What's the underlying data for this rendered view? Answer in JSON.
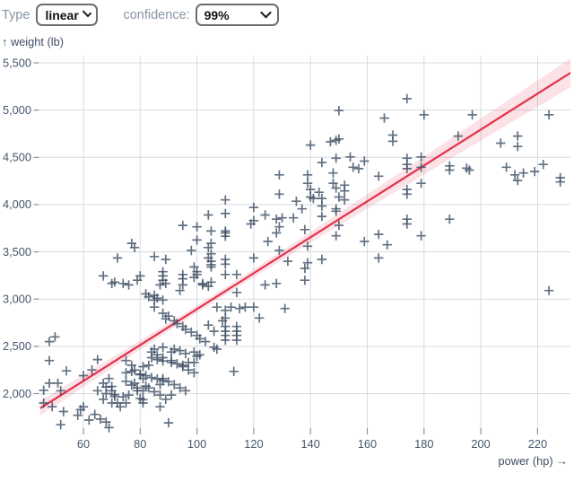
{
  "controls": {
    "type_label": "Type",
    "type_value": "linear",
    "confidence_label": "confidence:",
    "confidence_value": "99%",
    "confidence_options_visible_selected": "99%"
  },
  "colors": {
    "accent_red": "#e4314b",
    "band_pink": "rgba(228,49,75,0.14)",
    "point_slate": "#3c4d63",
    "grid": "#d6dbe1",
    "tick_color": "#8894a2",
    "tick_text": "#46566b",
    "axis_title": "#3e4e63"
  },
  "chart_data": {
    "type": "scatter",
    "marker": "plus",
    "title": "",
    "xlabel": "power (hp) →",
    "ylabel": "↑ weight (lb)",
    "x_ticks": [
      60,
      80,
      100,
      120,
      140,
      160,
      180,
      200,
      220
    ],
    "y_ticks": [
      2000,
      2500,
      3000,
      3500,
      4000,
      4500,
      5000,
      5500
    ],
    "x_domain": [
      44.8,
      231.7
    ],
    "y_domain": [
      1610,
      5575
    ],
    "grid": true,
    "regression": {
      "model": "linear",
      "slope_lb_per_hp": 19.0,
      "intercept_lb": 994,
      "confidence": "99%",
      "band_mean_hp": 104,
      "band_halfwidth_lb_at_mean": 40,
      "band_growth": 1.33
    },
    "points": [
      [
        46,
        1900
      ],
      [
        46,
        2035
      ],
      [
        48,
        2350
      ],
      [
        48,
        2550
      ],
      [
        48,
        2110
      ],
      [
        49,
        1860
      ],
      [
        50,
        2600
      ],
      [
        51,
        2110
      ],
      [
        52,
        2030
      ],
      [
        52,
        1670
      ],
      [
        53,
        1810
      ],
      [
        54,
        2240
      ],
      [
        58,
        1770
      ],
      [
        59,
        1830
      ],
      [
        60,
        1860
      ],
      [
        60,
        2190
      ],
      [
        62,
        1720
      ],
      [
        63,
        2250
      ],
      [
        64,
        1780
      ],
      [
        65,
        2360
      ],
      [
        65,
        2030
      ],
      [
        66,
        1730
      ],
      [
        67,
        2110
      ],
      [
        67,
        1940
      ],
      [
        68,
        2000
      ],
      [
        68,
        2070
      ],
      [
        68,
        1700
      ],
      [
        69,
        2160
      ],
      [
        69,
        1640
      ],
      [
        70,
        2030
      ],
      [
        70,
        1900
      ],
      [
        70,
        2075
      ],
      [
        71,
        1970
      ],
      [
        71,
        1990
      ],
      [
        72,
        1900
      ],
      [
        73,
        1860
      ],
      [
        74,
        1965
      ],
      [
        75,
        1900
      ],
      [
        75,
        2350
      ],
      [
        75,
        2130
      ],
      [
        75,
        2220
      ],
      [
        76,
        1985
      ],
      [
        77,
        2300
      ],
      [
        77,
        2090
      ],
      [
        77,
        2235
      ],
      [
        78,
        2250
      ],
      [
        78,
        2110
      ],
      [
        79,
        2060
      ],
      [
        79,
        2030
      ],
      [
        80,
        2200
      ],
      [
        80,
        2205
      ],
      [
        80,
        1950
      ],
      [
        81,
        2160
      ],
      [
        81,
        2030
      ],
      [
        81,
        2285
      ],
      [
        81,
        1935
      ],
      [
        81,
        1900
      ],
      [
        82,
        2190
      ],
      [
        82,
        2080
      ],
      [
        83,
        2060
      ],
      [
        83,
        2300
      ],
      [
        84,
        2440
      ],
      [
        84,
        2380
      ],
      [
        84,
        2170
      ],
      [
        85,
        2020
      ],
      [
        85,
        2470
      ],
      [
        86,
        2410
      ],
      [
        86,
        2360
      ],
      [
        86,
        2155
      ],
      [
        87,
        1985
      ],
      [
        87,
        2095
      ],
      [
        87,
        1860
      ],
      [
        88,
        2380
      ],
      [
        88,
        2160
      ],
      [
        88,
        2345
      ],
      [
        88,
        2140
      ],
      [
        88,
        2490
      ],
      [
        89,
        1940
      ],
      [
        90,
        2125
      ],
      [
        90,
        1690
      ],
      [
        91,
        2350
      ],
      [
        91,
        1985
      ],
      [
        91,
        2440
      ],
      [
        91,
        2330
      ],
      [
        92,
        2095
      ],
      [
        92,
        2470
      ],
      [
        93,
        2315
      ],
      [
        94,
        2060
      ],
      [
        94,
        2455
      ],
      [
        95,
        2285
      ],
      [
        95,
        2300
      ],
      [
        96,
        2030
      ],
      [
        96,
        2425
      ],
      [
        97,
        2250
      ],
      [
        97,
        2330
      ],
      [
        99,
        2220
      ],
      [
        99,
        2440
      ],
      [
        99,
        2330
      ],
      [
        100,
        2395
      ],
      [
        101,
        2410
      ],
      [
        106,
        2490
      ],
      [
        85,
        2915
      ],
      [
        88,
        2850
      ],
      [
        89,
        2790
      ],
      [
        90,
        2820
      ],
      [
        92,
        2770
      ],
      [
        93,
        2740
      ],
      [
        95,
        2710
      ],
      [
        96,
        2680
      ],
      [
        98,
        2650
      ],
      [
        100,
        2615
      ],
      [
        101,
        2580
      ],
      [
        103,
        2550
      ],
      [
        104,
        2725
      ],
      [
        106,
        2660
      ],
      [
        107,
        2915
      ],
      [
        107,
        2470
      ],
      [
        109,
        2770
      ],
      [
        110,
        2880
      ],
      [
        110,
        2800
      ],
      [
        110,
        2710
      ],
      [
        110,
        2660
      ],
      [
        110,
        2615
      ],
      [
        110,
        2565
      ],
      [
        112,
        2915
      ],
      [
        113,
        2235
      ],
      [
        114,
        2710
      ],
      [
        114,
        2660
      ],
      [
        114,
        2615
      ],
      [
        114,
        2565
      ],
      [
        115,
        2900
      ],
      [
        117,
        2915
      ],
      [
        120,
        2915
      ],
      [
        122,
        2800
      ],
      [
        131,
        2900
      ],
      [
        67,
        3245
      ],
      [
        70,
        3165
      ],
      [
        71,
        3180
      ],
      [
        72,
        3435
      ],
      [
        74,
        3165
      ],
      [
        76,
        3150
      ],
      [
        77,
        3590
      ],
      [
        78,
        3545
      ],
      [
        79,
        3200
      ],
      [
        80,
        3245
      ],
      [
        82,
        3055
      ],
      [
        83,
        3025
      ],
      [
        85,
        3450
      ],
      [
        85,
        3040
      ],
      [
        85,
        2990
      ],
      [
        86,
        3010
      ],
      [
        87,
        3150
      ],
      [
        88,
        3290
      ],
      [
        88,
        3245
      ],
      [
        88,
        3200
      ],
      [
        88,
        2990
      ],
      [
        89,
        3420
      ],
      [
        89,
        3165
      ],
      [
        94,
        3090
      ],
      [
        95,
        3780
      ],
      [
        95,
        3260
      ],
      [
        95,
        3215
      ],
      [
        95,
        3150
      ],
      [
        98,
        3515
      ],
      [
        99,
        3340
      ],
      [
        99,
        3230
      ],
      [
        100,
        3765
      ],
      [
        100,
        3625
      ],
      [
        100,
        3290
      ],
      [
        100,
        3260
      ],
      [
        102,
        3165
      ],
      [
        102,
        3150
      ],
      [
        104,
        3890
      ],
      [
        104,
        3545
      ],
      [
        104,
        3435
      ],
      [
        104,
        3135
      ],
      [
        105,
        3720
      ],
      [
        105,
        3590
      ],
      [
        105,
        3480
      ],
      [
        105,
        3400
      ],
      [
        105,
        3365
      ],
      [
        105,
        3340
      ],
      [
        105,
        3180
      ],
      [
        110,
        4050
      ],
      [
        110,
        3905
      ],
      [
        110,
        3720
      ],
      [
        110,
        3700
      ],
      [
        110,
        3665
      ],
      [
        110,
        3420
      ],
      [
        110,
        3370
      ],
      [
        110,
        3260
      ],
      [
        114,
        3260
      ],
      [
        114,
        3070
      ],
      [
        119,
        3795
      ],
      [
        120,
        3970
      ],
      [
        120,
        3830
      ],
      [
        120,
        3435
      ],
      [
        124,
        3890
      ],
      [
        125,
        3610
      ],
      [
        124,
        3150
      ],
      [
        128,
        3165
      ],
      [
        128,
        3845
      ],
      [
        128,
        3700
      ],
      [
        129,
        4110
      ],
      [
        129,
        3765
      ],
      [
        129,
        3515
      ],
      [
        130,
        3860
      ],
      [
        132,
        3400
      ],
      [
        134,
        3860
      ],
      [
        135,
        4035
      ],
      [
        137,
        3955
      ],
      [
        138,
        3735
      ],
      [
        138,
        3325
      ],
      [
        138,
        3200
      ],
      [
        139,
        3560
      ],
      [
        139,
        3385
      ],
      [
        140,
        4160
      ],
      [
        140,
        4080
      ],
      [
        141,
        4065
      ],
      [
        143,
        4130
      ],
      [
        144,
        4065
      ],
      [
        144,
        3985
      ],
      [
        144,
        3875
      ],
      [
        144,
        3420
      ],
      [
        149,
        4175
      ],
      [
        149,
        3955
      ],
      [
        149,
        3930
      ],
      [
        149,
        3670
      ],
      [
        150,
        4080
      ],
      [
        150,
        3780
      ],
      [
        152,
        4205
      ],
      [
        152,
        4145
      ],
      [
        152,
        4050
      ],
      [
        159,
        3610
      ],
      [
        164,
        3685
      ],
      [
        164,
        3435
      ],
      [
        167,
        3575
      ],
      [
        129,
        4315
      ],
      [
        139,
        4315
      ],
      [
        139,
        4225
      ],
      [
        140,
        4630
      ],
      [
        144,
        4445
      ],
      [
        147,
        4665
      ],
      [
        148,
        4335
      ],
      [
        148,
        4225
      ],
      [
        149,
        4680
      ],
      [
        149,
        4490
      ],
      [
        150,
        4995
      ],
      [
        150,
        4695
      ],
      [
        154,
        4505
      ],
      [
        155,
        4395
      ],
      [
        157,
        4380
      ],
      [
        159,
        4460
      ],
      [
        164,
        4300
      ],
      [
        166,
        4915
      ],
      [
        169,
        4735
      ],
      [
        169,
        4670
      ],
      [
        174,
        5120
      ],
      [
        174,
        4490
      ],
      [
        174,
        4425
      ],
      [
        174,
        4380
      ],
      [
        174,
        4160
      ],
      [
        174,
        4110
      ],
      [
        174,
        3845
      ],
      [
        174,
        3795
      ],
      [
        179,
        4505
      ],
      [
        179,
        4395
      ],
      [
        179,
        4225
      ],
      [
        179,
        3670
      ],
      [
        180,
        4950
      ],
      [
        189,
        4410
      ],
      [
        189,
        4365
      ],
      [
        189,
        3845
      ],
      [
        192,
        4725
      ],
      [
        195,
        4385
      ],
      [
        196,
        4365
      ],
      [
        197,
        4950
      ],
      [
        207,
        4650
      ],
      [
        209,
        4395
      ],
      [
        212,
        4315
      ],
      [
        213,
        4725
      ],
      [
        213,
        4615
      ],
      [
        213,
        4255
      ],
      [
        215,
        4335
      ],
      [
        219,
        4350
      ],
      [
        222,
        4425
      ],
      [
        224,
        4950
      ],
      [
        224,
        3090
      ],
      [
        228,
        4285
      ],
      [
        228,
        4240
      ]
    ]
  }
}
